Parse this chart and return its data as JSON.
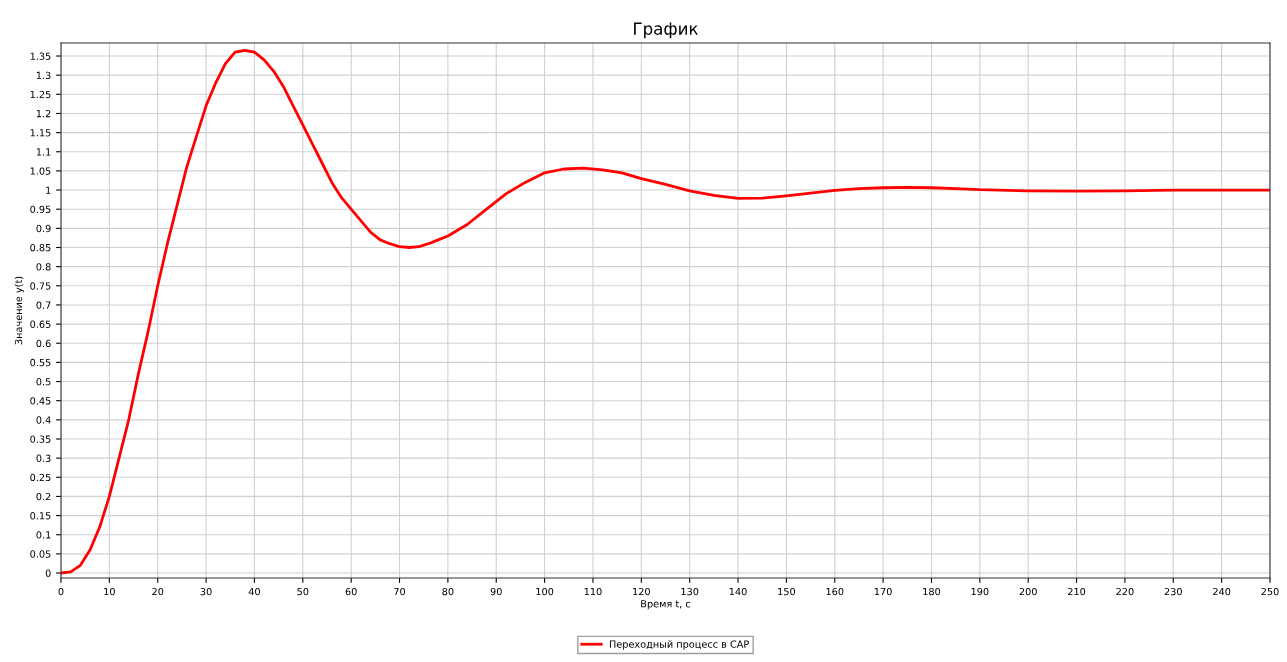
{
  "chart_data": {
    "type": "line",
    "title": "График",
    "xlabel": "Время t, с",
    "ylabel": "Значение y(t)",
    "x": [
      0,
      2,
      4,
      6,
      8,
      10,
      12,
      14,
      16,
      18,
      20,
      22,
      24,
      26,
      28,
      30,
      32,
      34,
      36,
      38,
      40,
      42,
      44,
      46,
      48,
      50,
      52,
      54,
      56,
      58,
      60,
      62,
      64,
      66,
      68,
      70,
      72,
      74,
      76,
      78,
      80,
      84,
      88,
      92,
      96,
      100,
      104,
      108,
      112,
      116,
      120,
      125,
      130,
      135,
      140,
      145,
      150,
      155,
      160,
      165,
      170,
      175,
      180,
      185,
      190,
      200,
      210,
      220,
      230,
      240,
      250
    ],
    "series": [
      {
        "name": "Переходный процесс в САР",
        "color": "#ff0000",
        "values": [
          0,
          0.003,
          0.02,
          0.06,
          0.12,
          0.2,
          0.3,
          0.4,
          0.52,
          0.63,
          0.75,
          0.86,
          0.96,
          1.06,
          1.14,
          1.22,
          1.28,
          1.33,
          1.36,
          1.365,
          1.36,
          1.34,
          1.31,
          1.27,
          1.22,
          1.17,
          1.12,
          1.07,
          1.02,
          0.98,
          0.95,
          0.92,
          0.89,
          0.87,
          0.86,
          0.852,
          0.85,
          0.852,
          0.86,
          0.87,
          0.88,
          0.91,
          0.95,
          0.99,
          1.02,
          1.045,
          1.055,
          1.057,
          1.053,
          1.045,
          1.03,
          1.015,
          0.998,
          0.986,
          0.978,
          0.979,
          0.985,
          0.992,
          0.999,
          1.004,
          1.006,
          1.007,
          1.006,
          1.004,
          1.001,
          0.998,
          0.997,
          0.998,
          1.0,
          1.0,
          1.0
        ]
      }
    ],
    "xlim": [
      0,
      250
    ],
    "xticks": [
      0,
      10,
      20,
      30,
      40,
      50,
      60,
      70,
      80,
      90,
      100,
      110,
      120,
      130,
      140,
      150,
      160,
      170,
      180,
      190,
      200,
      210,
      220,
      230,
      240,
      250
    ],
    "ylim": [
      -0.013,
      1.384
    ],
    "yticks": [
      0,
      0.05,
      0.1,
      0.15,
      0.2,
      0.25,
      0.3,
      0.35,
      0.4,
      0.45,
      0.5,
      0.55,
      0.6,
      0.65,
      0.7,
      0.75,
      0.8,
      0.85,
      0.9,
      0.95,
      1,
      1.05,
      1.1,
      1.15,
      1.2,
      1.25,
      1.3,
      1.35
    ],
    "grid": true,
    "legend": "bottom",
    "line_style": "solid",
    "marker": "none"
  }
}
